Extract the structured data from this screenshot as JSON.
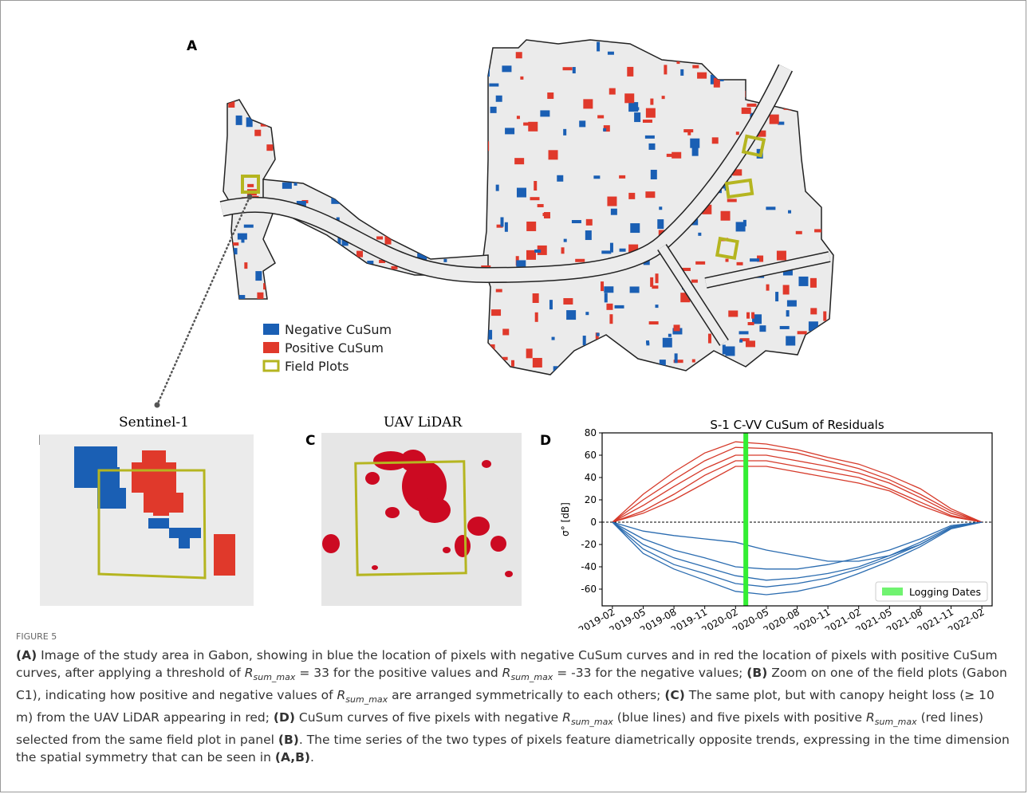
{
  "panel_a": {
    "label": "A",
    "legend": [
      {
        "label": "Negative CuSum",
        "color": "#1a5fb4"
      },
      {
        "label": "Positive CuSum",
        "color": "#e0392b"
      },
      {
        "label": "Field Plots",
        "color": "#b5b520"
      }
    ]
  },
  "panel_b": {
    "label": "B",
    "title": "Sentinel-1"
  },
  "panel_c": {
    "label": "C",
    "title": "UAV LiDAR"
  },
  "chart_data": {
    "type": "line",
    "label": "D",
    "title": "S-1 C-VV CuSum of Residuals",
    "ylabel": "σ° [dB]",
    "x": [
      "2019-02",
      "2019-05",
      "2019-08",
      "2019-11",
      "2020-02",
      "2020-05",
      "2020-08",
      "2020-11",
      "2021-02",
      "2021-05",
      "2021-08",
      "2021-11",
      "2022-02"
    ],
    "xlim": [
      "2019-01",
      "2022-03"
    ],
    "xticks": [
      "2019-02",
      "2019-05",
      "2019-08",
      "2019-11",
      "2020-02",
      "2020-05",
      "2020-08",
      "2020-11",
      "2021-02",
      "2021-05",
      "2021-08",
      "2021-11",
      "2022-02"
    ],
    "ylim": [
      -75,
      80
    ],
    "yticks": [
      -60,
      -40,
      -20,
      0,
      20,
      40,
      60,
      80
    ],
    "hline": 0,
    "span": {
      "x": "2020-03",
      "label": "Logging Dates",
      "color": "#33ee33"
    },
    "legend": "lower right",
    "series": [
      {
        "color": "#d63a2a",
        "values": [
          0,
          25,
          45,
          62,
          72,
          70,
          65,
          58,
          52,
          42,
          30,
          12,
          0
        ]
      },
      {
        "color": "#d63a2a",
        "values": [
          0,
          20,
          38,
          55,
          67,
          66,
          62,
          55,
          48,
          38,
          25,
          10,
          0
        ]
      },
      {
        "color": "#d63a2a",
        "values": [
          0,
          15,
          32,
          48,
          60,
          60,
          55,
          50,
          44,
          35,
          22,
          8,
          0
        ]
      },
      {
        "color": "#d63a2a",
        "values": [
          0,
          10,
          25,
          42,
          55,
          55,
          50,
          45,
          40,
          30,
          18,
          6,
          0
        ]
      },
      {
        "color": "#d63a2a",
        "values": [
          0,
          8,
          20,
          35,
          50,
          50,
          45,
          40,
          35,
          28,
          15,
          5,
          0
        ]
      },
      {
        "color": "#2b6cb0",
        "values": [
          0,
          -8,
          -12,
          -15,
          -18,
          -25,
          -30,
          -35,
          -35,
          -30,
          -20,
          -5,
          0
        ]
      },
      {
        "color": "#2b6cb0",
        "values": [
          0,
          -15,
          -25,
          -32,
          -40,
          -42,
          -42,
          -38,
          -32,
          -25,
          -15,
          -3,
          0
        ]
      },
      {
        "color": "#2b6cb0",
        "values": [
          0,
          -20,
          -32,
          -40,
          -48,
          -52,
          -50,
          -46,
          -40,
          -30,
          -18,
          -4,
          0
        ]
      },
      {
        "color": "#2b6cb0",
        "values": [
          0,
          -24,
          -38,
          -46,
          -55,
          -58,
          -55,
          -50,
          -42,
          -32,
          -20,
          -5,
          0
        ]
      },
      {
        "color": "#2b6cb0",
        "values": [
          0,
          -28,
          -42,
          -52,
          -62,
          -65,
          -62,
          -56,
          -46,
          -35,
          -22,
          -6,
          0
        ]
      }
    ]
  },
  "caption": {
    "figure": "FIGURE 5",
    "parts": [
      {
        "text": "(A)",
        "style": "b"
      },
      {
        "text": " Image of the study area in Gabon, showing in blue the location of pixels with negative CuSum curves and in red the location of pixels with positive CuSum curves, after applying a threshold of "
      },
      {
        "text": "R",
        "style": "i"
      },
      {
        "text": "sum_max",
        "style": "sub"
      },
      {
        "text": " = 33 for the positive values and "
      },
      {
        "text": "R",
        "style": "i"
      },
      {
        "text": "sum_max",
        "style": "sub"
      },
      {
        "text": " = -33 for the negative values; "
      },
      {
        "text": "(B)",
        "style": "b"
      },
      {
        "text": " Zoom on one of the field plots (Gabon C1), indicating how positive and negative values of "
      },
      {
        "text": "R",
        "style": "i"
      },
      {
        "text": "sum_max",
        "style": "sub"
      },
      {
        "text": " are arranged symmetrically to each others; "
      },
      {
        "text": "(C)",
        "style": "b"
      },
      {
        "text": " The same plot, but with canopy height loss (≥ 10 m) from the UAV LiDAR appearing in red; "
      },
      {
        "text": "(D)",
        "style": "b"
      },
      {
        "text": " CuSum curves of five pixels with negative "
      },
      {
        "text": "R",
        "style": "i"
      },
      {
        "text": "sum_max",
        "style": "sub"
      },
      {
        "text": " (blue lines) and five pixels with positive "
      },
      {
        "text": "R",
        "style": "i"
      },
      {
        "text": "sum_max",
        "style": "sub"
      },
      {
        "text": " (red lines) selected from the same field plot in panel "
      },
      {
        "text": "(B)",
        "style": "b"
      },
      {
        "text": ". The time series of the two types of pixels feature diametrically opposite trends, expressing in the time dimension the spatial symmetry that can be seen in "
      },
      {
        "text": "(A,B)",
        "style": "b"
      },
      {
        "text": "."
      }
    ]
  }
}
